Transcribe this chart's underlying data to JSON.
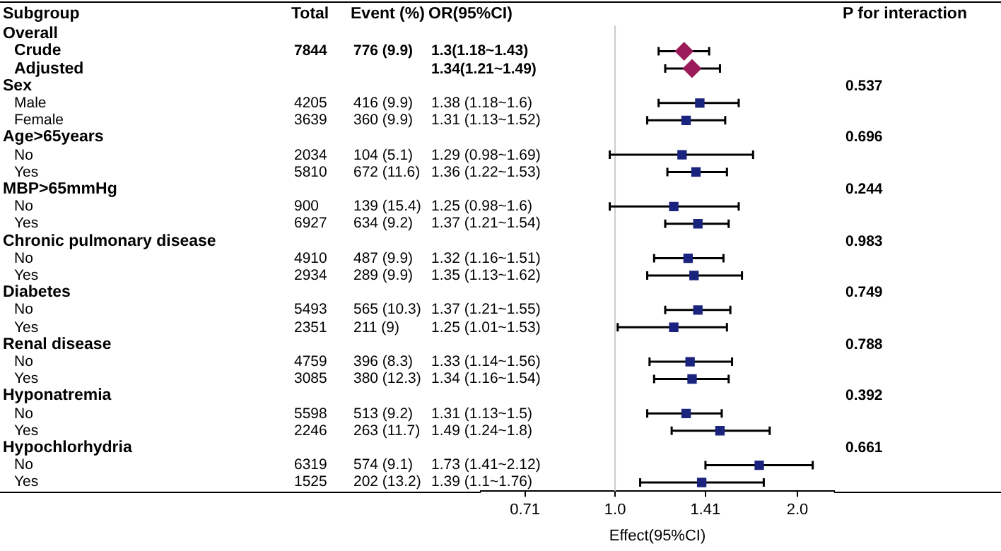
{
  "chart_data": [
    {
      "type": "other",
      "ylabel": "Subgroup",
      "data_labels": true,
      "categories": [
        "Overall",
        "Crude",
        "Adjusted",
        "Sex",
        "Male",
        "Female",
        "Age>65years",
        "No",
        "Yes",
        "MBP>65mmHg",
        "No",
        "Yes",
        "Chronic pulmonary disease",
        "No",
        "Yes",
        "Diabetes",
        "No",
        "Yes",
        "Renal disease",
        "No",
        "Yes",
        "Hyponatremia",
        "No",
        "Yes",
        "Hypochlorhydria",
        "No",
        "Yes"
      ],
      "series": [
        {
          "name": "Total",
          "values": [
            null,
            7844,
            null,
            null,
            4205,
            3639,
            null,
            2034,
            5810,
            null,
            900,
            6927,
            null,
            4910,
            2934,
            null,
            5493,
            2351,
            null,
            4759,
            3085,
            null,
            5598,
            2246,
            null,
            6319,
            1525
          ]
        },
        {
          "name": "Event (%)",
          "values": [
            null,
            776,
            null,
            null,
            416,
            360,
            null,
            104,
            672,
            null,
            139,
            634,
            null,
            487,
            289,
            null,
            565,
            211,
            null,
            396,
            380,
            null,
            513,
            263,
            null,
            574,
            202
          ],
          "value_labels": [
            null,
            "776 (9.9)",
            null,
            null,
            "416 (9.9)",
            "360 (9.9)",
            null,
            "104 (5.1)",
            "672 (11.6)",
            null,
            "139 (15.4)",
            "634 (9.2)",
            null,
            "487 (9.9)",
            "289 (9.9)",
            null,
            "565 (10.3)",
            "211 (9)",
            null,
            "396 (8.3)",
            "380 (12.3)",
            null,
            "513 (9.2)",
            "263 (11.7)",
            null,
            "574 (9.1)",
            "202 (13.2)"
          ]
        },
        {
          "name": "OR(95%CI)",
          "values": [
            null,
            1.3,
            1.34,
            null,
            1.38,
            1.31,
            null,
            1.29,
            1.36,
            null,
            1.25,
            1.37,
            null,
            1.32,
            1.35,
            null,
            1.37,
            1.25,
            null,
            1.33,
            1.34,
            null,
            1.31,
            1.49,
            null,
            1.73,
            1.39
          ],
          "value_labels": [
            null,
            "1.3(1.18~1.43)",
            "1.34(1.21~1.49)",
            null,
            "1.38 (1.18~1.6)",
            "1.31 (1.13~1.52)",
            null,
            "1.29 (0.98~1.69)",
            "1.36 (1.22~1.53)",
            null,
            "1.25 (0.98~1.6)",
            "1.37 (1.21~1.54)",
            null,
            "1.32 (1.16~1.51)",
            "1.35 (1.13~1.62)",
            null,
            "1.37 (1.21~1.55)",
            "1.25 (1.01~1.53)",
            null,
            "1.33 (1.14~1.56)",
            "1.34 (1.16~1.54)",
            null,
            "1.31 (1.13~1.5)",
            "1.49 (1.24~1.8)",
            null,
            "1.73 (1.41~2.12)",
            "1.39 (1.1~1.76)"
          ]
        },
        {
          "name": "P for interaction",
          "values": [
            null,
            null,
            null,
            0.537,
            null,
            null,
            0.696,
            null,
            null,
            0.244,
            null,
            null,
            0.983,
            null,
            null,
            0.749,
            null,
            null,
            0.788,
            null,
            null,
            0.392,
            null,
            null,
            0.661,
            null,
            null
          ]
        }
      ]
    },
    {
      "type": "scatter",
      "orientation": "horizontal",
      "xlabel": "Effect(95%CI)",
      "log": "x",
      "grid": false,
      "legend": false,
      "tick_labels": "x",
      "categories": [
        null,
        null,
        null,
        null,
        null,
        null,
        null,
        null,
        null,
        null,
        null,
        null,
        null,
        null,
        null,
        null,
        null,
        null,
        null,
        null,
        null,
        null,
        null,
        null,
        null,
        null,
        null
      ],
      "xlim": [
        0.6,
        2.3
      ],
      "xticks": [
        0.71,
        {
          "value": 1,
          "label": "1.0"
        },
        1.41,
        {
          "value": 2,
          "label": "2.0"
        }
      ],
      "ref_lines": [
        {
          "axis": "x",
          "value": 1,
          "color": "#cccccc"
        }
      ],
      "series": [
        {
          "marker": "diamond",
          "color": "#9b1b5a",
          "values": [
            null,
            1.3,
            1.34,
            null,
            null,
            null,
            null,
            null,
            null,
            null,
            null,
            null,
            null,
            null,
            null,
            null,
            null,
            null,
            null,
            null,
            null,
            null,
            null,
            null,
            null,
            null,
            null
          ],
          "errors": [
            null,
            [
              1.18,
              1.43
            ],
            [
              1.21,
              1.49
            ],
            null,
            null,
            null,
            null,
            null,
            null,
            null,
            null,
            null,
            null,
            null,
            null,
            null,
            null,
            null,
            null,
            null,
            null,
            null,
            null,
            null,
            null,
            null,
            null
          ]
        },
        {
          "marker": "square",
          "color": "#1a237e",
          "values": [
            null,
            null,
            null,
            null,
            1.38,
            1.31,
            null,
            1.29,
            1.36,
            null,
            1.25,
            1.37,
            null,
            1.32,
            1.35,
            null,
            1.37,
            1.25,
            null,
            1.33,
            1.34,
            null,
            1.31,
            1.49,
            null,
            1.73,
            1.39
          ],
          "errors": [
            null,
            null,
            null,
            null,
            [
              1.18,
              1.6
            ],
            [
              1.13,
              1.52
            ],
            null,
            [
              0.98,
              1.69
            ],
            [
              1.22,
              1.53
            ],
            null,
            [
              0.98,
              1.6
            ],
            [
              1.21,
              1.54
            ],
            null,
            [
              1.16,
              1.51
            ],
            [
              1.13,
              1.62
            ],
            null,
            [
              1.21,
              1.55
            ],
            [
              1.01,
              1.53
            ],
            null,
            [
              1.14,
              1.56
            ],
            [
              1.16,
              1.54
            ],
            null,
            [
              1.13,
              1.5
            ],
            [
              1.24,
              1.8
            ],
            null,
            [
              1.41,
              2.12
            ],
            [
              1.1,
              1.76
            ]
          ]
        }
      ]
    }
  ]
}
